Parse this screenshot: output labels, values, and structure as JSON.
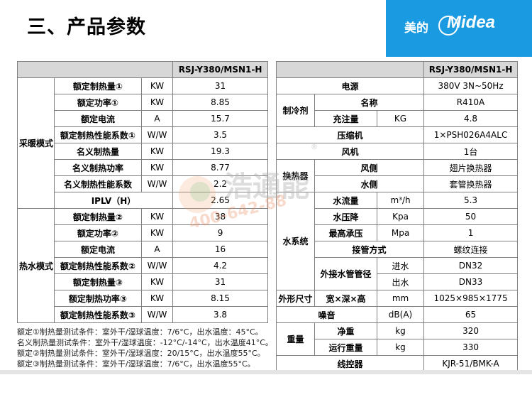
{
  "title": "三、产品参数",
  "logo": {
    "cn": "美的",
    "en": "Midea"
  },
  "model": "RSJ-Y380/MSN1-H",
  "left": {
    "group_heating": "采暖模式",
    "group_hotwater": "热水模式",
    "heating_rows": [
      {
        "name": "额定制热量①",
        "unit": "KW",
        "value": "31"
      },
      {
        "name": "额定功率①",
        "unit": "KW",
        "value": "8.85"
      },
      {
        "name": "额定电流",
        "unit": "A",
        "value": "15.7"
      },
      {
        "name": "额定制热性能系数①",
        "unit": "W/W",
        "value": "3.5"
      },
      {
        "name": "名义制热量",
        "unit": "KW",
        "value": "19.3"
      },
      {
        "name": "名义制热功率",
        "unit": "KW",
        "value": "8.77"
      },
      {
        "name": "名义制热性能系数",
        "unit": "W/W",
        "value": "2.2"
      }
    ],
    "iplv": {
      "name": "IPLV（H）",
      "value": "2.65"
    },
    "hotwater_rows": [
      {
        "name": "额定制热量②",
        "unit": "KW",
        "value": "38"
      },
      {
        "name": "额定功率②",
        "unit": "KW",
        "value": "9"
      },
      {
        "name": "额定电流",
        "unit": "A",
        "value": "16"
      },
      {
        "name": "额定制热性能系数②",
        "unit": "W/W",
        "value": "4.2"
      },
      {
        "name": "额定制热量③",
        "unit": "KW",
        "value": "31"
      },
      {
        "name": "额定制热功率③",
        "unit": "KW",
        "value": "8.15"
      },
      {
        "name": "额定制热性能系数③",
        "unit": "W/W",
        "value": "3.8"
      }
    ]
  },
  "right": {
    "power": {
      "name": "电源",
      "value": "380V 3N~50Hz"
    },
    "refrigerant": {
      "group": "制冷剂",
      "name_label": "名称",
      "name_value": "R410A",
      "charge_label": "充注量",
      "charge_unit": "KG",
      "charge_value": "4.8"
    },
    "compressor": {
      "name": "压缩机",
      "value": "1×PSH026A4ALC"
    },
    "fan": {
      "name": "风机",
      "value": "1台"
    },
    "exchanger": {
      "group": "换热器",
      "air_label": "风侧",
      "air_value": "翅片换热器",
      "water_label": "水侧",
      "water_value": "套管换热器"
    },
    "water": {
      "group": "水系统",
      "flow_label": "水流量",
      "flow_unit": "m³/h",
      "flow_value": "5.3",
      "drop_label": "水压降",
      "drop_unit": "Kpa",
      "drop_value": "50",
      "pressure_label": "最高承压",
      "pressure_unit": "Mpa",
      "pressure_value": "1",
      "conn_label": "接管方式",
      "conn_value": "螺纹连接",
      "pipe_label": "外接水管管径",
      "in_label": "进水",
      "in_value": "DN32",
      "out_label": "出水",
      "out_value": "DN33"
    },
    "dims": {
      "group": "外形尺寸",
      "label": "宽×深×高",
      "unit": "mm",
      "value": "1025×985×1775"
    },
    "noise": {
      "label": "噪音",
      "unit": "dB(A)",
      "value": "65"
    },
    "weight": {
      "group": "重量",
      "net_label": "净重",
      "net_unit": "kg",
      "net_value": "320",
      "op_label": "运行重量",
      "op_unit": "kg",
      "op_value": "330"
    },
    "controller": {
      "name": "线控器",
      "value": "KJR-51/BMK-A"
    }
  },
  "notes": [
    "额定①制热量测试条件：室外干/湿球温度：7/6°C，出水温度：45°C。",
    "名义制热量测试条件：室外干/湿球温度：-12°C/-14°C，出水温度41°C。",
    "额定②制热量测试条件：室外干/湿球温度：20/15°C，出水温度55°C。",
    "额定③制热量测试条件：室外干/湿球温度：7/6°C，出水温度55°C。"
  ],
  "watermark": {
    "text": "浩通能",
    "phone": "400-642-88",
    "mark": "®"
  }
}
